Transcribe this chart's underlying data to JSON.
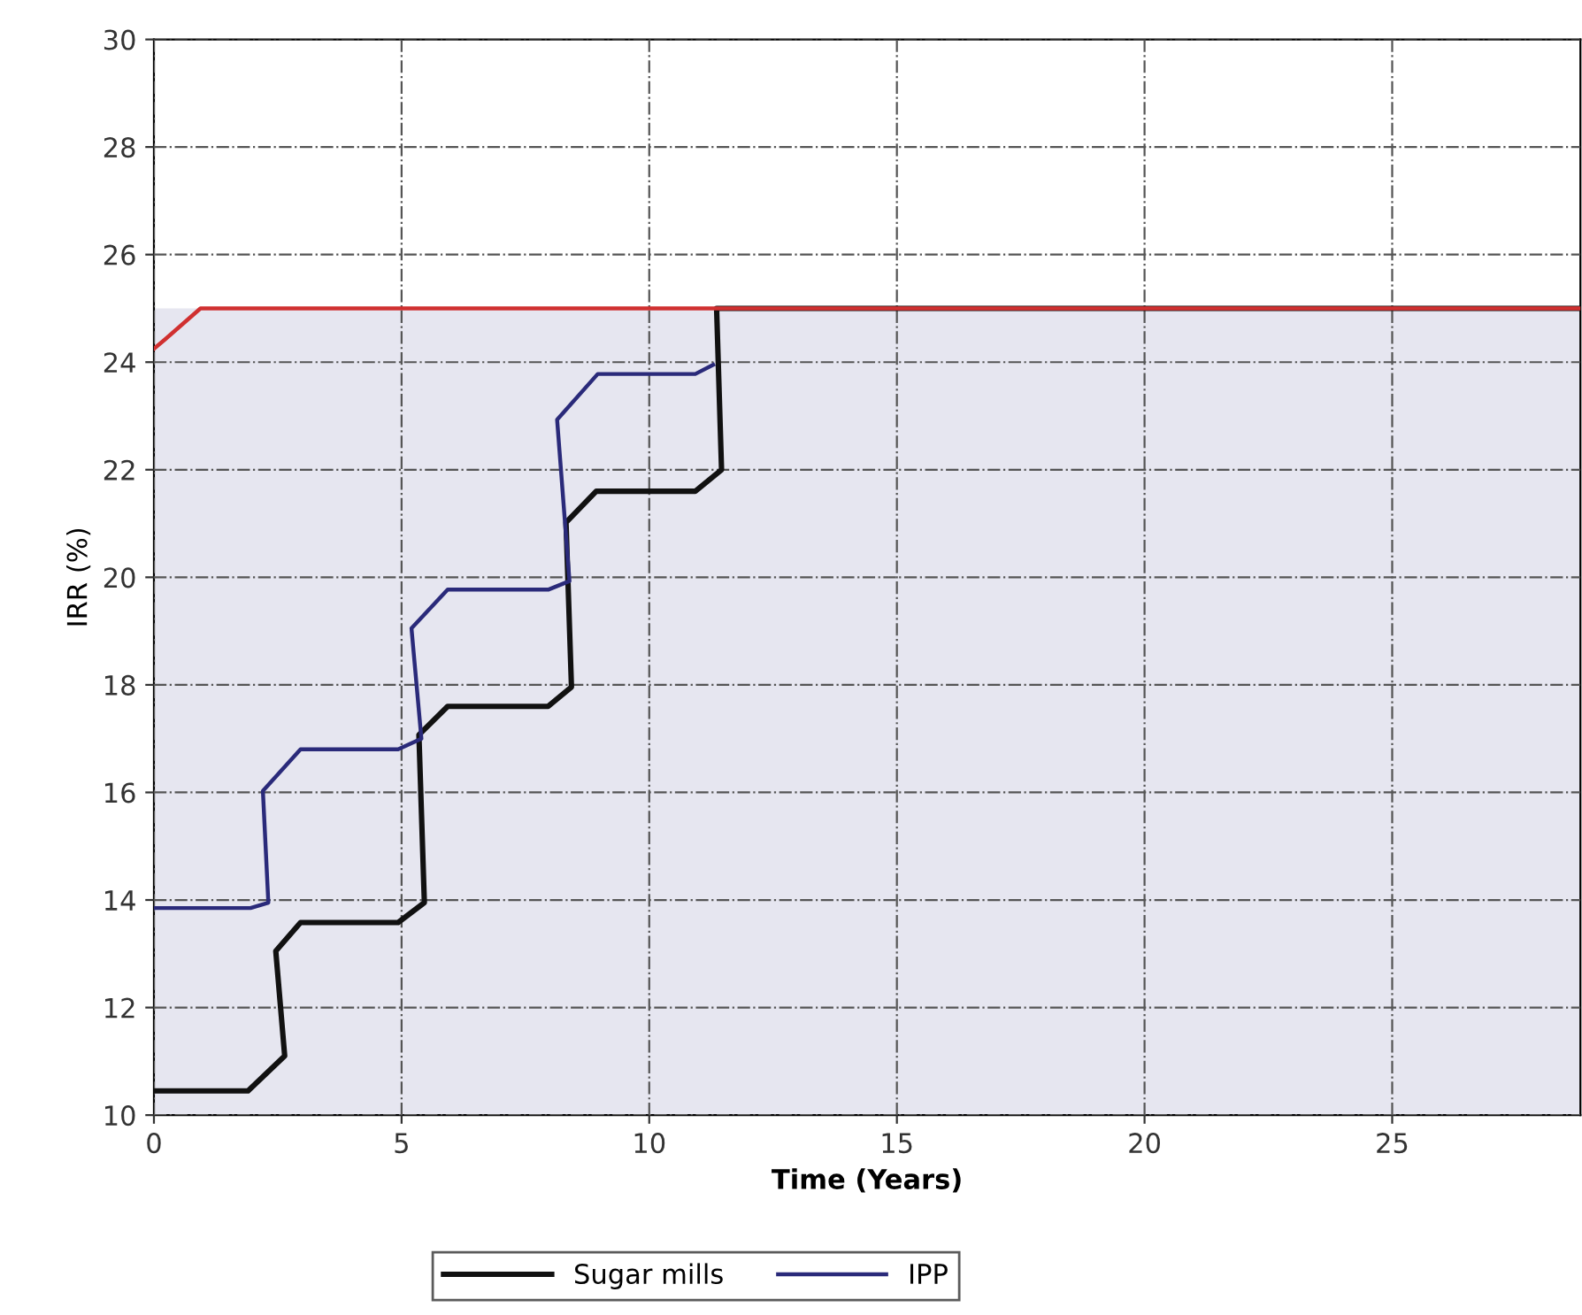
{
  "chart_data": {
    "type": "line",
    "xlabel": "Time (Years)",
    "ylabel": "IRR (%)",
    "xlim": [
      0,
      28.8
    ],
    "ylim": [
      10,
      30
    ],
    "xticks": [
      0,
      5,
      10,
      15,
      20,
      25
    ],
    "yticks": [
      10,
      12,
      14,
      16,
      18,
      20,
      22,
      24,
      26,
      28,
      30
    ],
    "grid": true,
    "legend": "bottom",
    "line_style": "solid",
    "bands": [
      {
        "axis": "y",
        "from": 10,
        "to": 25,
        "color": "#e6e6f0"
      }
    ],
    "series": [
      {
        "name": "Sugar mills",
        "color": "#111111",
        "x": [
          0,
          1.9,
          2.64,
          2.46,
          2.96,
          4.93,
          5.46,
          5.35,
          5.93,
          7.96,
          8.43,
          8.32,
          8.93,
          10.93,
          11.46,
          11.36,
          28.8
        ],
        "values": [
          10.45,
          10.45,
          11.1,
          13.05,
          13.58,
          13.58,
          13.95,
          17.07,
          17.6,
          17.6,
          17.96,
          21.02,
          21.6,
          21.6,
          22.0,
          25.0,
          25.0
        ]
      },
      {
        "name": "IPP",
        "color": "#2a2a7a",
        "x": [
          0,
          1.95,
          2.31,
          2.2,
          2.96,
          4.93,
          5.4,
          5.2,
          5.93,
          7.96,
          8.39,
          8.14,
          8.96,
          10.93,
          11.29
        ],
        "values": [
          13.85,
          13.85,
          13.95,
          16.03,
          16.8,
          16.8,
          17.0,
          19.05,
          19.77,
          19.77,
          19.93,
          22.93,
          23.78,
          23.78,
          23.95
        ]
      },
      {
        "color": "#d03030",
        "x": [
          0,
          0.22,
          0.94,
          28.8
        ],
        "values": [
          24.25,
          24.42,
          25.0,
          25.0
        ]
      }
    ]
  }
}
